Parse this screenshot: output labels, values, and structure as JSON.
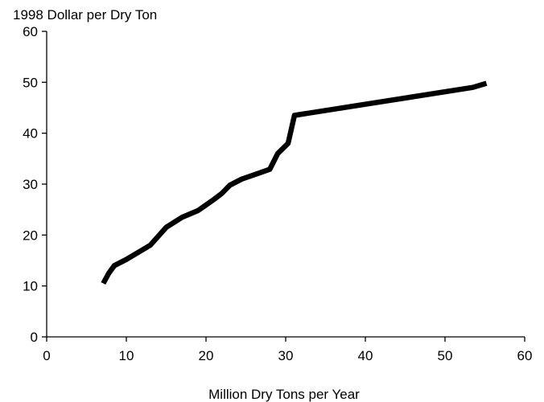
{
  "chart_data": {
    "type": "line",
    "title": "",
    "ylabel": "1998 Dollar per Dry Ton",
    "xlabel": "Million Dry Tons per Year",
    "xlim": [
      0,
      60
    ],
    "ylim": [
      0,
      60
    ],
    "xticks": [
      0,
      10,
      20,
      30,
      40,
      50,
      60
    ],
    "yticks": [
      0,
      10,
      20,
      30,
      40,
      50,
      60
    ],
    "grid": false,
    "legend": "none",
    "line_color": "#000000",
    "series": [
      {
        "x": [
          7.1,
          7.8,
          8.5,
          10.0,
          13.0,
          15.0,
          17.0,
          19.0,
          21.0,
          22.0,
          23.0,
          24.5,
          26.0,
          28.0,
          29.0,
          30.3,
          31.1,
          53.5,
          55.2
        ],
        "y": [
          10.5,
          12.5,
          14.0,
          15.2,
          18.0,
          21.5,
          23.5,
          24.8,
          27.0,
          28.2,
          29.8,
          31.0,
          31.8,
          32.9,
          36.0,
          38.0,
          43.5,
          49.0,
          49.8
        ]
      }
    ]
  }
}
